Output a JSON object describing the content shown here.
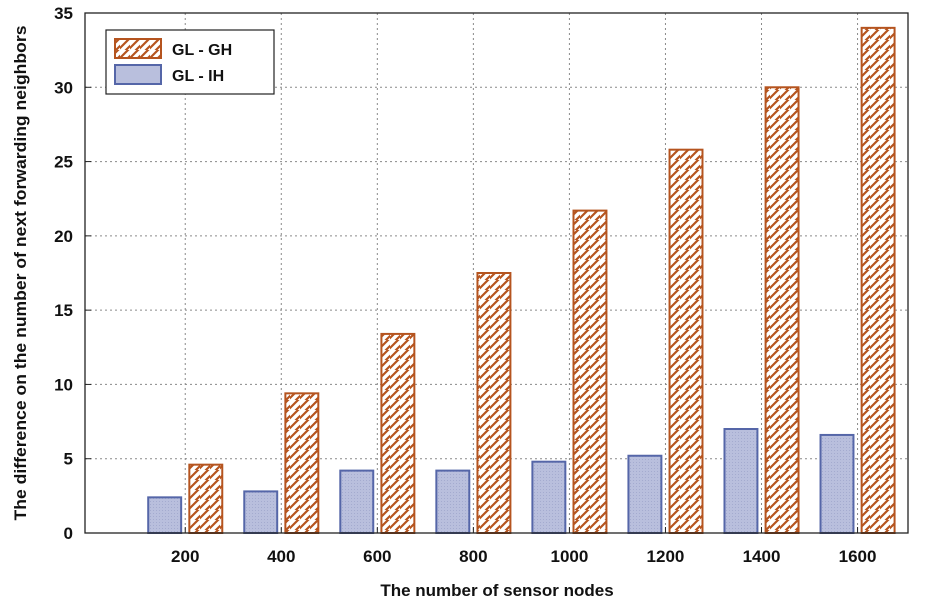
{
  "chart_data": {
    "type": "bar",
    "title": "",
    "xlabel": "The number of sensor nodes",
    "ylabel": "The difference on  the number of next forwarding neighbors",
    "categories": [
      "200",
      "400",
      "600",
      "800",
      "1000",
      "1200",
      "1400",
      "1600"
    ],
    "series": [
      {
        "name": "GL - IH",
        "values": [
          2.4,
          2.8,
          4.2,
          4.2,
          4.8,
          5.2,
          7.0,
          6.6
        ],
        "color": "#b9bfdd",
        "edge": "#5566a8",
        "pattern": "solid"
      },
      {
        "name": "GL - GH",
        "values": [
          4.6,
          9.4,
          13.4,
          17.5,
          21.7,
          25.8,
          30.0,
          34.0
        ],
        "color": "#ffffff",
        "edge": "#b5541f",
        "pattern": "hatch"
      }
    ],
    "ylim": [
      0,
      35
    ],
    "yticks": [
      "0",
      "5",
      "10",
      "15",
      "20",
      "25",
      "30",
      "35"
    ],
    "legend": {
      "position": "top-left",
      "entries": [
        "GL - GH",
        "GL - IH"
      ]
    },
    "grid": true
  }
}
